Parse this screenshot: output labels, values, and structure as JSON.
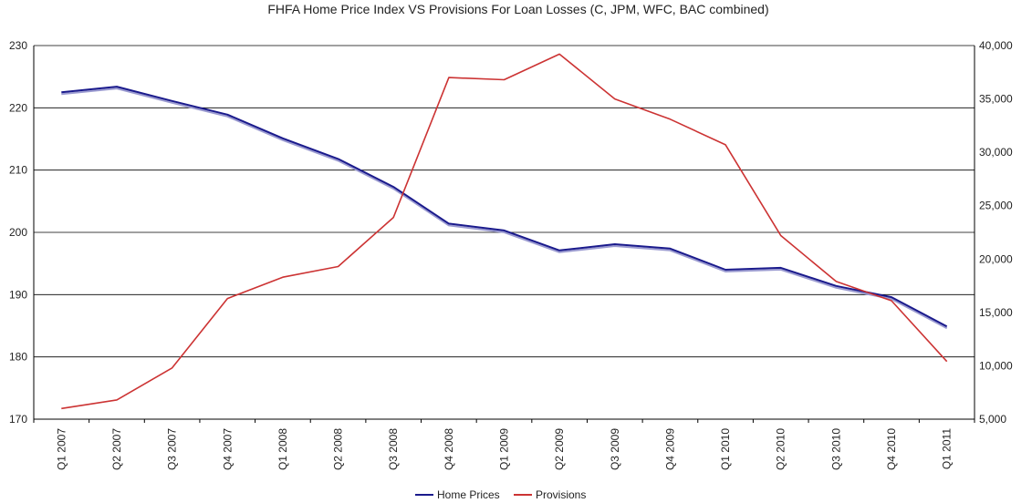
{
  "chart_data": {
    "type": "line",
    "title": "FHFA Home Price Index VS Provisions For Loan Losses (C, JPM, WFC, BAC combined)",
    "categories": [
      "Q1 2007",
      "Q2 2007",
      "Q3 2007",
      "Q4 2007",
      "Q1 2008",
      "Q2 2008",
      "Q3 2008",
      "Q4 2008",
      "Q1 2009",
      "Q2 2009",
      "Q3 2009",
      "Q4 2009",
      "Q1 2010",
      "Q2 2010",
      "Q3 2010",
      "Q4 2010",
      "Q1 2011"
    ],
    "y_left": {
      "ylim": [
        170,
        230
      ],
      "ticks": [
        "170",
        "180",
        "190",
        "200",
        "210",
        "220",
        "230"
      ]
    },
    "y_right": {
      "ylim": [
        5000,
        40000
      ],
      "ticks": [
        "5,000",
        "10,000",
        "15,000",
        "20,000",
        "25,000",
        "30,000",
        "35,000",
        "40,000"
      ]
    },
    "grid": true,
    "legend_position": "bottom-center",
    "series": [
      {
        "name": "Home Prices",
        "axis": "left",
        "color": "#1a1a8c",
        "values": [
          222.5,
          223.4,
          221.1,
          218.9,
          215.1,
          211.8,
          207.3,
          201.4,
          200.3,
          197.1,
          198.1,
          197.4,
          194.0,
          194.3,
          191.4,
          189.6,
          184.9
        ]
      },
      {
        "name": "Provisions",
        "axis": "right",
        "color": "#cc3333",
        "values": [
          6000,
          6800,
          9800,
          16300,
          18300,
          19300,
          23900,
          37000,
          36800,
          39200,
          35000,
          33100,
          30700,
          22200,
          17900,
          16100,
          10400
        ]
      }
    ]
  }
}
